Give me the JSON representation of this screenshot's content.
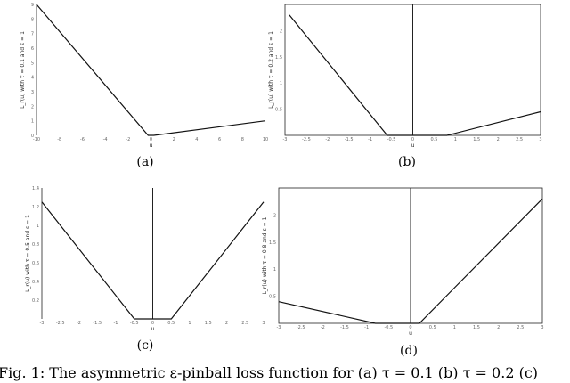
{
  "chart_data": [
    {
      "type": "line",
      "panel_label": "(a)",
      "ylabel": "L_r(u) with τ = 0.1 and ε = 1",
      "xlabel": "u",
      "xlim": [
        -10,
        10
      ],
      "ylim": [
        0,
        9
      ],
      "xticks": [
        "-10",
        "-8",
        "-6",
        "-4",
        "-2",
        "0",
        "2",
        "4",
        "6",
        "8",
        "10"
      ],
      "yticks": [
        "0",
        "1",
        "2",
        "3",
        "4",
        "5",
        "6",
        "7",
        "8",
        "9"
      ],
      "series": [
        {
          "x": [
            -10,
            -0.25,
            0.25,
            10
          ],
          "y": [
            9,
            0,
            0,
            1
          ]
        }
      ]
    },
    {
      "type": "line",
      "panel_label": "(b)",
      "ylabel": "L_r(u) with τ = 0.2 and ε = 1",
      "xlabel": "u",
      "xlim": [
        -3,
        3
      ],
      "ylim": [
        0,
        2.5
      ],
      "xticks": [
        "-3",
        "-2.5",
        "-2",
        "-1.5",
        "-1",
        "-0.5",
        "0",
        "0.5",
        "1",
        "1.5",
        "2",
        "2.5",
        "3"
      ],
      "yticks": [
        "0.5",
        "1",
        "1.5",
        "2"
      ],
      "series": [
        {
          "x": [
            -2.9,
            -0.6,
            0.8,
            3
          ],
          "y": [
            2.3,
            0,
            0,
            0.45
          ]
        }
      ]
    },
    {
      "type": "line",
      "panel_label": "(c)",
      "ylabel": "L_r(u) with τ = 0.5 and ε = 1",
      "xlabel": "u",
      "xlim": [
        -3,
        3
      ],
      "ylim": [
        0,
        1.4
      ],
      "xticks": [
        "-3",
        "-2.5",
        "-2",
        "-1.5",
        "-1",
        "-0.5",
        "0",
        "0.5",
        "1",
        "1.5",
        "2",
        "2.5",
        "3"
      ],
      "yticks": [
        "0.2",
        "0.4",
        "0.6",
        "0.8",
        "1",
        "1.2",
        "1.4"
      ],
      "series": [
        {
          "x": [
            -3,
            -0.5,
            0.5,
            3
          ],
          "y": [
            1.25,
            0,
            0,
            1.25
          ]
        }
      ]
    },
    {
      "type": "line",
      "panel_label": "(d)",
      "ylabel": "L_r(u) with τ = 0.8 and ε = 1",
      "xlabel": "u",
      "xlim": [
        -3,
        3
      ],
      "ylim": [
        0,
        2.5
      ],
      "xticks": [
        "-3",
        "-2.5",
        "-2",
        "-1.5",
        "-1",
        "-0.5",
        "0",
        "0.5",
        "1",
        "1.5",
        "2",
        "2.5",
        "3"
      ],
      "yticks": [
        "0.5",
        "1",
        "1.5",
        "2"
      ],
      "series": [
        {
          "x": [
            -3,
            -0.8,
            0.2,
            3
          ],
          "y": [
            0.4,
            0,
            0,
            2.3
          ]
        }
      ]
    }
  ],
  "caption": "Fig. 1: The asymmetric ε-pinball loss function for (a) τ = 0.1 (b) τ = 0.2 (c)"
}
